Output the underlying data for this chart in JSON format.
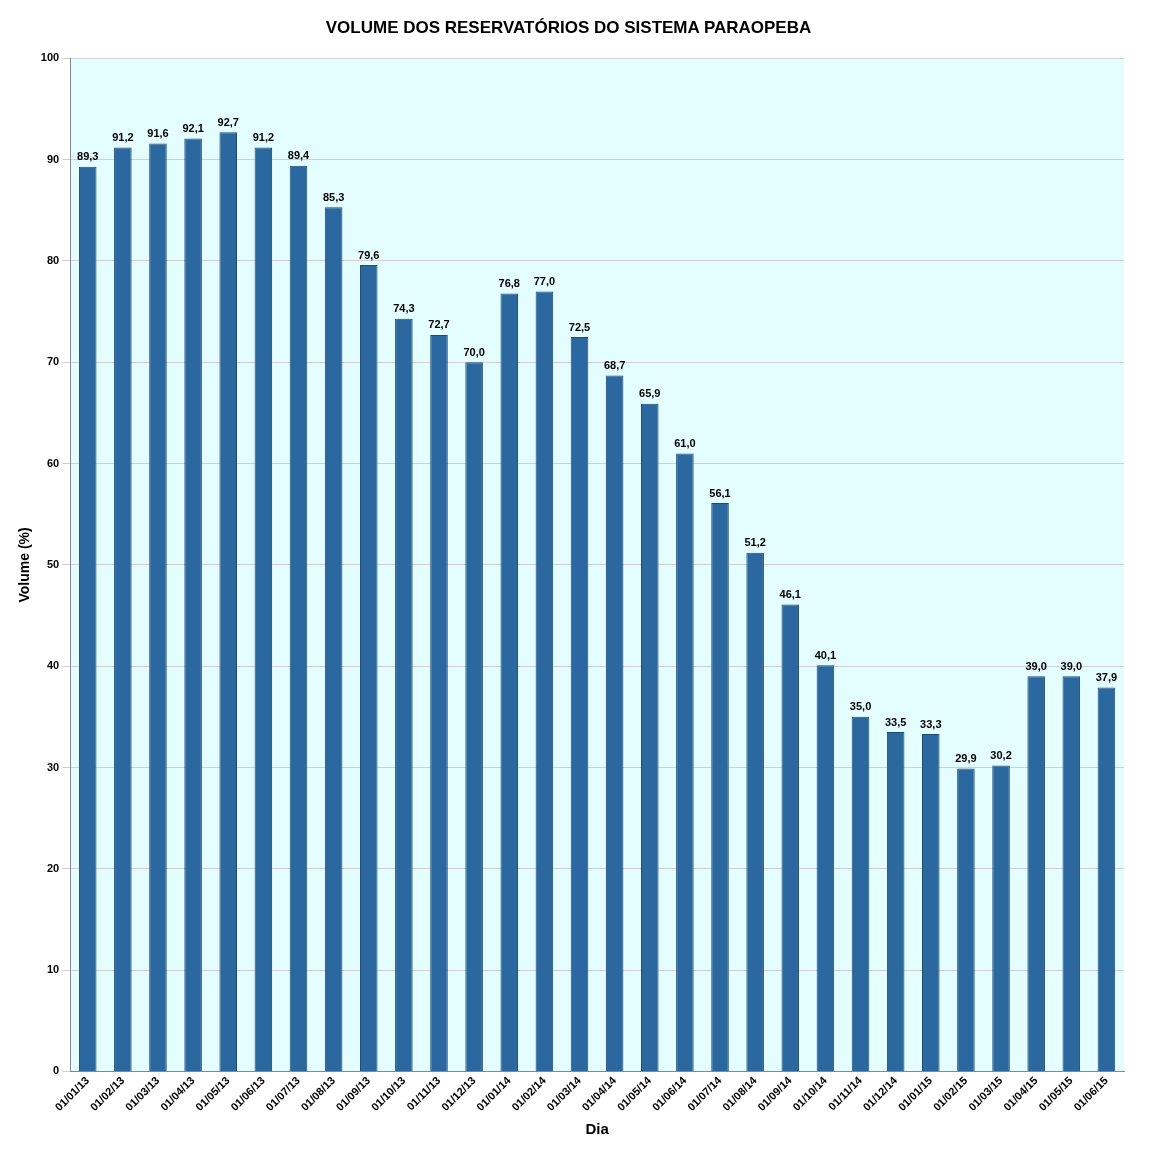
{
  "chart_data": {
    "type": "bar",
    "title": "VOLUME DOS RESERVATÓRIOS DO SISTEMA PARAOPEBA",
    "xlabel": "Dia",
    "ylabel": "Volume (%)",
    "categories": [
      "01/01/13",
      "01/02/13",
      "01/03/13",
      "01/04/13",
      "01/05/13",
      "01/06/13",
      "01/07/13",
      "01/08/13",
      "01/09/13",
      "01/10/13",
      "01/11/13",
      "01/12/13",
      "01/01/14",
      "01/02/14",
      "01/03/14",
      "01/04/14",
      "01/05/14",
      "01/06/14",
      "01/07/14",
      "01/08/14",
      "01/09/14",
      "01/10/14",
      "01/11/14",
      "01/12/14",
      "01/01/15",
      "01/02/15",
      "01/03/15",
      "01/04/15",
      "01/05/15",
      "01/06/15"
    ],
    "values": [
      89.3,
      91.2,
      91.6,
      92.1,
      92.7,
      91.2,
      89.4,
      85.3,
      79.6,
      74.3,
      72.7,
      70.0,
      76.8,
      77.0,
      72.5,
      68.7,
      65.9,
      61.0,
      56.1,
      51.2,
      46.1,
      40.1,
      35.0,
      33.5,
      33.3,
      29.9,
      30.2,
      39.0,
      39.0,
      37.9
    ],
    "value_labels": [
      "89,3",
      "91,2",
      "91,6",
      "92,1",
      "92,7",
      "91,2",
      "89,4",
      "85,3",
      "79,6",
      "74,3",
      "72,7",
      "70,0",
      "76,8",
      "77,0",
      "72,5",
      "68,7",
      "65,9",
      "61,0",
      "56,1",
      "51,2",
      "46,1",
      "40,1",
      "35,0",
      "33,5",
      "33,3",
      "29,9",
      "30,2",
      "39,0",
      "39,0",
      "37,9"
    ],
    "color": "#2c68a0",
    "ylim": [
      0,
      100
    ],
    "yticks": [
      0,
      10,
      20,
      30,
      40,
      50,
      60,
      70,
      80,
      90,
      100
    ],
    "grid": "y",
    "legend": false
  }
}
